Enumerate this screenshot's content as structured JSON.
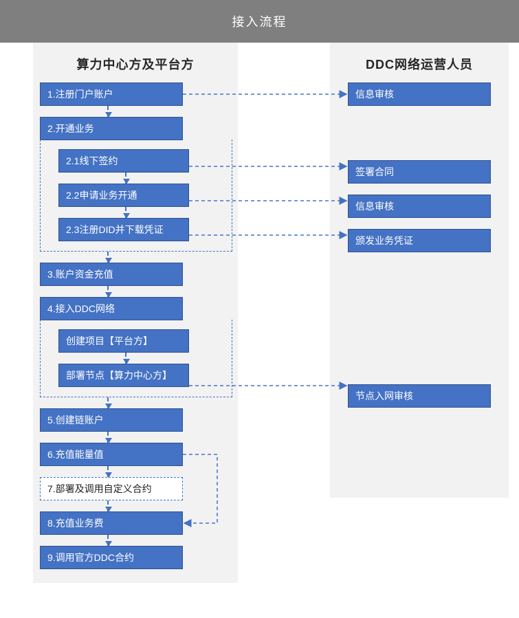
{
  "header": {
    "title": "接入流程"
  },
  "left": {
    "title": "算力中心方及平台方",
    "steps": {
      "s1": "1.注册门户账户",
      "s2": "2.开通业务",
      "s2_1": "2.1线下签约",
      "s2_2": "2.2申请业务开通",
      "s2_3": "2.3注册DID并下载凭证",
      "s3": "3.账户资金充值",
      "s4": "4.接入DDC网络",
      "s4_1": "创建项目【平台方】",
      "s4_2": "部署节点【算力中心方】",
      "s5": "5.创建链账户",
      "s6": "6.充值能量值",
      "s7": "7.部署及调用自定义合约",
      "s8": "8.充值业务费",
      "s9": "9.调用官方DDC合约"
    }
  },
  "right": {
    "title": "DDC网络运营人员",
    "r1": "信息审核",
    "r2": "签署合同",
    "r3": "信息审核",
    "r4": "颁发业务凭证",
    "r5": "节点入网审核"
  },
  "style": {
    "box_fill": "#4472c4",
    "box_border": "#2f528f",
    "box_text": "#ffffff",
    "dashed_border": "#4472c4",
    "header_bg": "#7f7f7f",
    "col_bg": "#f2f2f2",
    "font_size_box": 14,
    "font_size_title": 18
  },
  "diagram_type": "flowchart",
  "connectors": [
    {
      "from": "left-step-1",
      "to": "right-r1",
      "style": "dashed-h"
    },
    {
      "from": "left-step-2-1",
      "to": "right-r2",
      "style": "dashed-h"
    },
    {
      "from": "left-step-2-2",
      "to": "right-r3",
      "style": "dashed-h"
    },
    {
      "from": "left-step-2-3",
      "to": "right-r4",
      "style": "dashed-h"
    },
    {
      "from": "left-step-4-2",
      "to": "right-r5",
      "style": "dashed-h"
    },
    {
      "from": "left-step-6",
      "to": "left-step-8",
      "style": "dashed-right-down-left"
    }
  ]
}
